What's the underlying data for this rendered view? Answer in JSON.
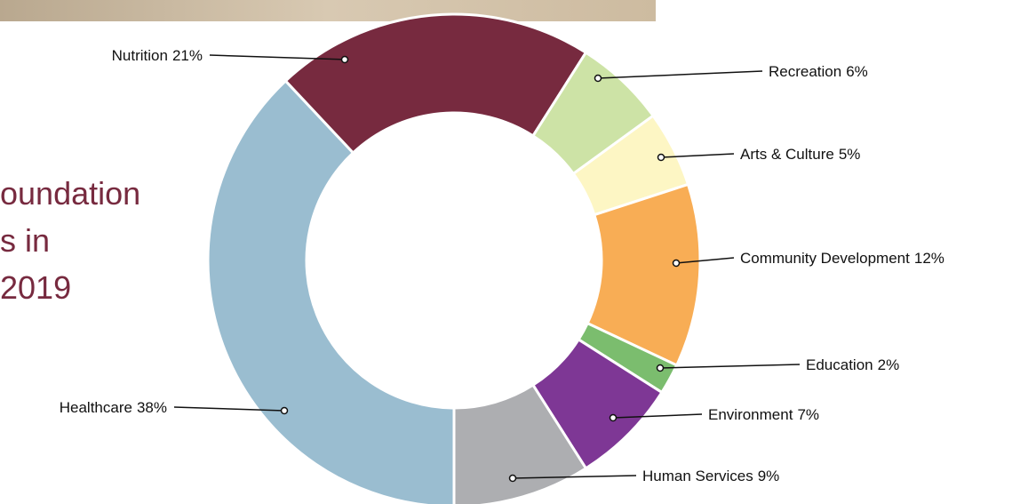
{
  "chart_data": {
    "type": "donut",
    "title_lines": [
      "oundation",
      "s in",
      "2019"
    ],
    "categories": [
      "Nutrition",
      "Recreation",
      "Arts & Culture",
      "Community Development",
      "Education",
      "Environment",
      "Human Services",
      "Healthcare"
    ],
    "values": [
      21,
      6,
      5,
      12,
      2,
      7,
      9,
      38
    ],
    "value_labels": [
      "21%",
      "6%",
      "5%",
      "12%",
      "2%",
      "7%",
      "9%",
      "38%"
    ],
    "colors": [
      "#772a3f",
      "#cde3a6",
      "#fdf6c4",
      "#f8ad55",
      "#7bbd6e",
      "#7e3795",
      "#adaeb1",
      "#9abdd0"
    ]
  }
}
